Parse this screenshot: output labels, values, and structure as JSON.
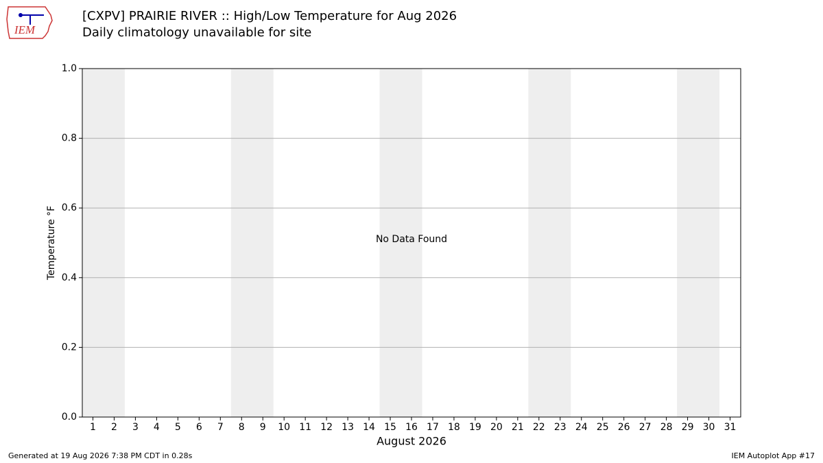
{
  "chart_data": {
    "type": "line",
    "title": "[CXPV] PRAIRIE RIVER :: High/Low Temperature for Aug 2026",
    "subtitle": "Daily climatology unavailable for site",
    "ylabel": "Temperature °F",
    "xlabel": "August 2026",
    "annotation": "No Data Found",
    "logo_text": "IEM",
    "footer_left": "Generated at 19 Aug 2026 7:38 PM CDT in 0.28s",
    "footer_right": "IEM Autoplot App #17",
    "xlim": [
      0.5,
      31.5
    ],
    "xticks": [
      1,
      2,
      3,
      4,
      5,
      6,
      7,
      8,
      9,
      10,
      11,
      12,
      13,
      14,
      15,
      16,
      17,
      18,
      19,
      20,
      21,
      22,
      23,
      24,
      25,
      26,
      27,
      28,
      29,
      30,
      31
    ],
    "ylim": [
      0,
      1
    ],
    "yticks": [
      {
        "value": 0,
        "label": "0.0"
      },
      0.2,
      0.4,
      0.6,
      0.8,
      {
        "value": 1,
        "label": "1.0"
      }
    ],
    "grid": true,
    "shaded_spans": [
      [
        0.5,
        2.5
      ],
      [
        7.5,
        9.5
      ],
      [
        14.5,
        16.5
      ],
      [
        21.5,
        23.5
      ],
      [
        28.5,
        30.5
      ]
    ],
    "shade_color": "#eeeeee",
    "series": []
  }
}
